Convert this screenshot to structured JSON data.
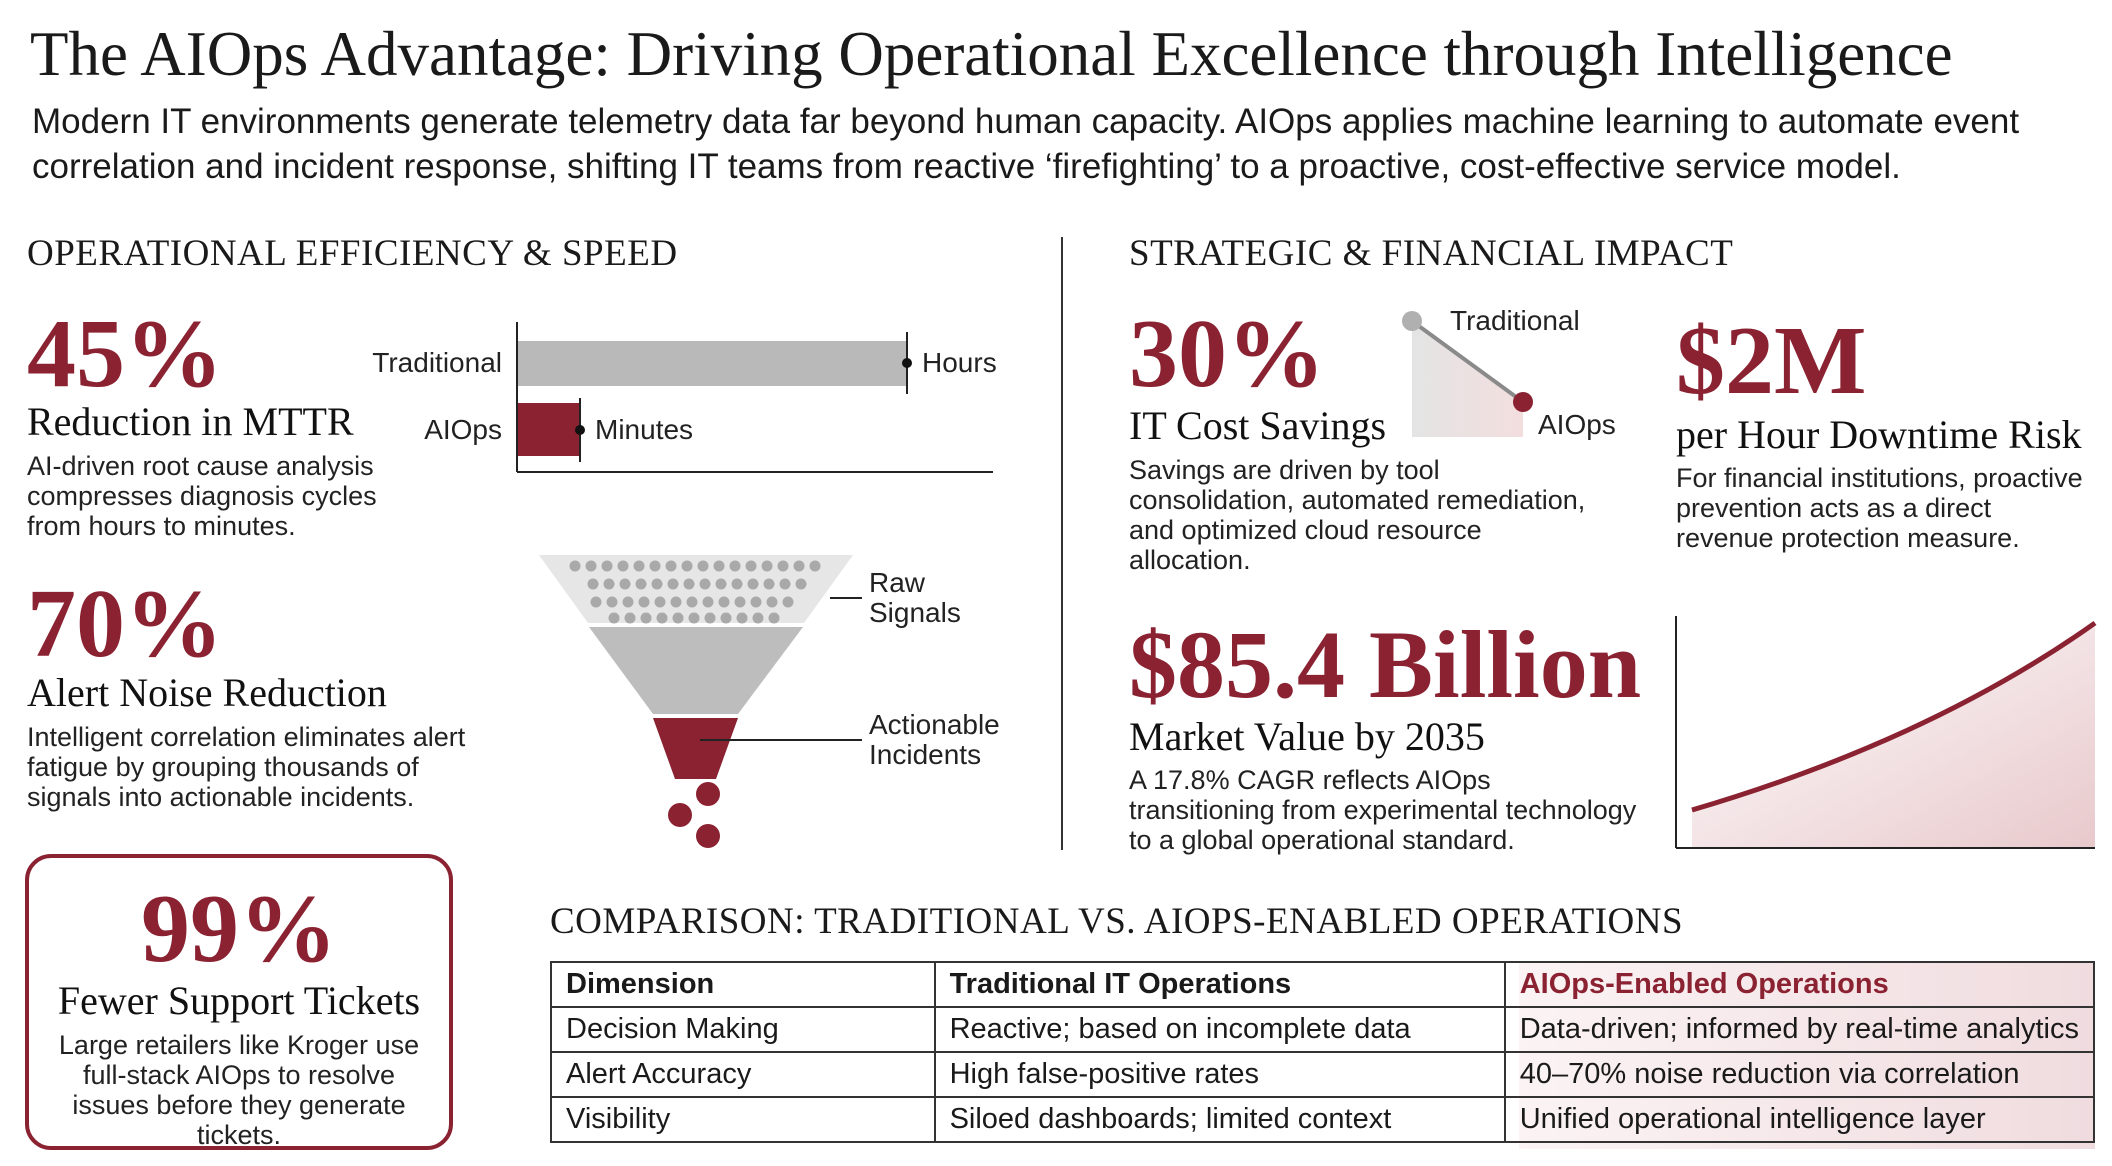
{
  "header": {
    "title": "The AIOps Advantage: Driving Operational Excellence through Intelligence",
    "subtitle": "Modern IT environments generate telemetry data far beyond human capacity. AIOps applies machine learning to automate event correlation and incident response, shifting IT teams from reactive ‘firefighting’ to a proactive, cost-effective service model."
  },
  "left": {
    "heading": "OPERATIONAL EFFICIENCY & SPEED",
    "stats": [
      {
        "value": "45%",
        "label": "Reduction in MTTR",
        "description": "AI-driven root cause analysis compresses diagnosis cycles from hours to minutes."
      },
      {
        "value": "70%",
        "label": "Alert Noise Reduction",
        "description": "Intelligent correlation eliminates alert fatigue by grouping thousands of signals into actionable incidents."
      }
    ],
    "bar_chart": {
      "categories": [
        "Traditional",
        "AIOps"
      ],
      "value_labels": [
        "Hours",
        "Minutes"
      ]
    },
    "funnel": {
      "top_label": "Raw Signals",
      "bottom_label": "Actionable Incidents"
    },
    "highlight": {
      "value": "99%",
      "label": "Fewer Support Tickets",
      "description": "Large retailers like Kroger use full-stack AIOps to resolve issues before they generate tickets."
    }
  },
  "right": {
    "heading": "STRATEGIC & FINANCIAL IMPACT",
    "stats": [
      {
        "value": "30%",
        "label": "IT Cost Savings",
        "description": "Savings are driven by tool consolidation, automated remediation, and optimized cloud resource allocation."
      },
      {
        "value": "$2M",
        "label": "per Hour Downtime Risk",
        "description": "For financial institutions, proactive prevention acts as a direct revenue protection measure."
      },
      {
        "value": "$85.4 Billion",
        "label": "Market Value by 2035",
        "description": "A 17.8% CAGR reflects AIOps transitioning from experimental technology to a global operational standard."
      }
    ],
    "mini_chart": {
      "start_label": "Traditional",
      "end_label": "AIOps"
    }
  },
  "comparison": {
    "heading": "COMPARISON: TRADITIONAL VS. AIOPS-ENABLED OPERATIONS",
    "table": {
      "columns": [
        "Dimension",
        "Traditional IT Operations",
        "AIOps-Enabled Operations"
      ],
      "rows": [
        [
          "Decision Making",
          "Reactive; based on incomplete data",
          "Data-driven; informed by real-time analytics"
        ],
        [
          "Alert Accuracy",
          "High false-positive rates",
          "40–70% noise reduction via correlation"
        ],
        [
          "Visibility",
          "Siloed dashboards; limited context",
          "Unified operational intelligence layer"
        ]
      ]
    }
  }
}
